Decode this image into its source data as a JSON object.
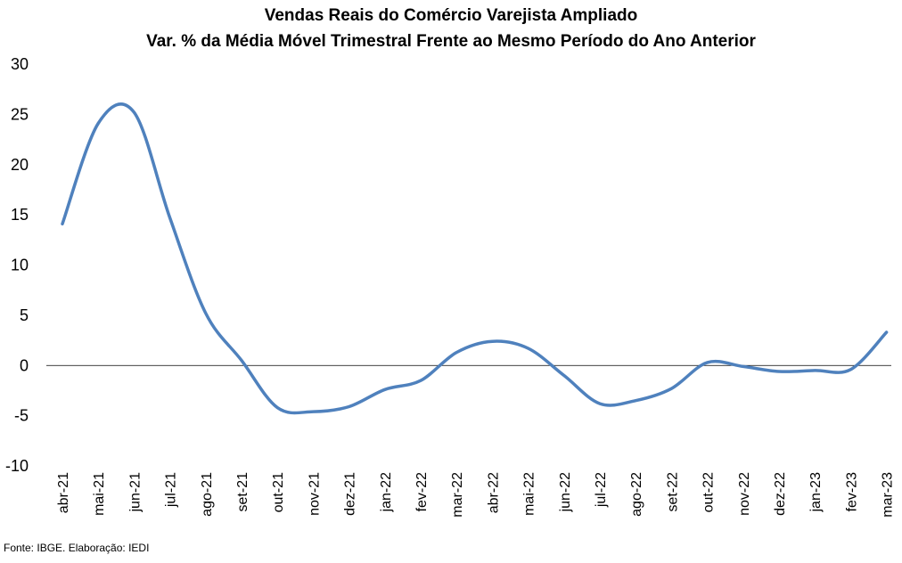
{
  "chart_data": {
    "type": "line",
    "title": "Vendas Reais do Comércio Varejista Ampliado",
    "subtitle": "Var. % da Média Móvel Trimestral Frente ao Mesmo Período do Ano Anterior",
    "xlabel": "",
    "ylabel": "",
    "categories": [
      "abr-21",
      "mai-21",
      "jun-21",
      "jul-21",
      "ago-21",
      "set-21",
      "out-21",
      "nov-21",
      "dez-21",
      "jan-22",
      "fev-22",
      "mar-22",
      "abr-22",
      "mai-22",
      "jun-22",
      "jul-22",
      "ago-22",
      "set-22",
      "out-22",
      "nov-22",
      "dez-22",
      "jan-23",
      "fev-23",
      "mar-23"
    ],
    "series": [
      {
        "values": [
          14.1,
          24.1,
          25.2,
          14.7,
          5.2,
          0.5,
          -4.2,
          -4.6,
          -4.1,
          -2.4,
          -1.5,
          1.3,
          2.4,
          1.7,
          -1.0,
          -3.8,
          -3.5,
          -2.3,
          0.3,
          -0.1,
          -0.6,
          -0.5,
          -0.4,
          3.3
        ],
        "color": "#4f81bd"
      }
    ],
    "ylim": [
      -10,
      30
    ],
    "yticks": [
      30,
      25,
      20,
      15,
      10,
      5,
      0,
      -5,
      -10
    ],
    "grid": false
  },
  "source": "Fonte: IBGE. Elaboração: IEDI"
}
